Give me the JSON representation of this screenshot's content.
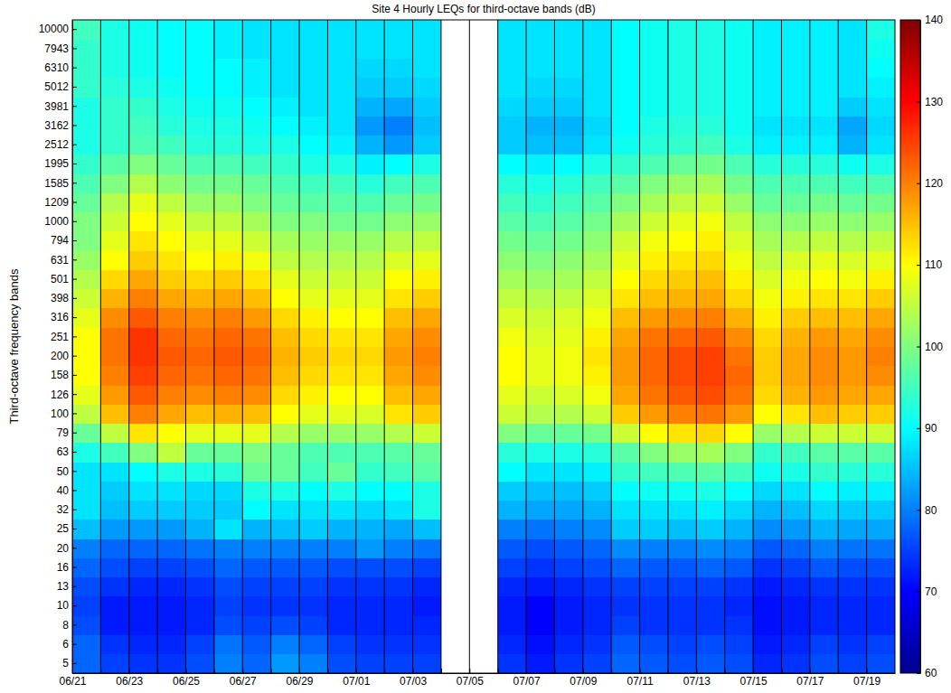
{
  "chart_data": {
    "type": "heatmap",
    "title": "Site 4 Hourly LEQs for third-octave bands (dB)",
    "y_label": "Third-octave frequency bands",
    "color": "jet",
    "grid": true,
    "categories": [
      "06/21",
      null,
      "06/23",
      null,
      "06/25",
      null,
      "06/27",
      null,
      "06/29",
      null,
      "07/01",
      null,
      "07/03",
      null,
      "07/05",
      null,
      "07/07",
      null,
      "07/09",
      null,
      "07/11",
      null,
      "07/13",
      null,
      "07/15",
      null,
      "07/17",
      null,
      "07/19"
    ],
    "bands": [
      5,
      6,
      8,
      10,
      13,
      16,
      20,
      25,
      32,
      40,
      50,
      63,
      79,
      100,
      126,
      158,
      200,
      251,
      316,
      398,
      501,
      631,
      794,
      1000,
      1209,
      1585,
      1995,
      2512,
      3162,
      3981,
      5012,
      6310,
      7943,
      10000
    ],
    "values": [
      [
        78,
        78,
        76,
        75,
        76,
        78,
        80,
        85,
        88,
        88,
        88,
        92,
        98,
        105,
        108,
        110,
        110,
        110,
        108,
        106,
        104,
        102,
        100,
        100,
        98,
        96,
        94,
        92,
        92,
        92,
        94,
        94,
        94,
        95
      ],
      [
        75,
        74,
        72,
        72,
        74,
        76,
        78,
        82,
        85,
        86,
        88,
        95,
        105,
        115,
        118,
        120,
        121,
        121,
        119,
        116,
        113,
        110,
        108,
        106,
        104,
        100,
        97,
        94,
        94,
        94,
        93,
        92,
        92,
        92
      ],
      [
        74,
        73,
        72,
        72,
        73,
        75,
        78,
        82,
        86,
        88,
        90,
        100,
        112,
        120,
        123,
        125,
        126,
        126,
        123,
        120,
        117,
        114,
        112,
        110,
        108,
        104,
        100,
        96,
        95,
        94,
        92,
        91,
        91,
        91
      ],
      [
        74,
        73,
        72,
        72,
        73,
        75,
        78,
        82,
        86,
        88,
        92,
        105,
        110,
        117,
        120,
        122,
        123,
        122,
        120,
        117,
        114,
        112,
        110,
        108,
        105,
        101,
        98,
        95,
        93,
        92,
        91,
        90,
        90,
        90
      ],
      [
        76,
        75,
        73,
        73,
        74,
        76,
        79,
        84,
        86,
        87,
        92,
        98,
        108,
        115,
        119,
        121,
        122,
        121,
        119,
        116,
        113,
        110,
        108,
        105,
        102,
        99,
        96,
        93,
        92,
        91,
        90,
        90,
        90,
        90
      ],
      [
        80,
        79,
        76,
        75,
        76,
        78,
        80,
        88,
        86,
        87,
        93,
        98,
        108,
        116,
        120,
        122,
        123,
        122,
        120,
        117,
        114,
        111,
        108,
        105,
        102,
        99,
        96,
        93,
        92,
        91,
        90,
        90,
        89,
        89
      ],
      [
        78,
        77,
        75,
        74,
        75,
        77,
        80,
        84,
        90,
        92,
        98,
        100,
        108,
        115,
        119,
        121,
        122,
        121,
        118,
        115,
        112,
        109,
        106,
        103,
        100,
        98,
        95,
        92,
        91,
        90,
        89,
        89,
        88,
        88
      ],
      [
        82,
        80,
        76,
        74,
        75,
        77,
        80,
        85,
        88,
        92,
        98,
        98,
        104,
        110,
        113,
        115,
        116,
        115,
        113,
        110,
        108,
        105,
        103,
        100,
        98,
        96,
        94,
        92,
        90,
        89,
        88,
        88,
        88,
        88
      ],
      [
        80,
        78,
        75,
        74,
        75,
        77,
        80,
        86,
        88,
        90,
        95,
        96,
        102,
        108,
        111,
        113,
        114,
        113,
        111,
        108,
        106,
        104,
        102,
        100,
        97,
        95,
        92,
        90,
        89,
        88,
        88,
        88,
        88,
        88
      ],
      [
        76,
        75,
        73,
        73,
        74,
        76,
        80,
        84,
        88,
        92,
        98,
        96,
        102,
        108,
        110,
        112,
        113,
        112,
        110,
        108,
        106,
        104,
        102,
        99,
        97,
        95,
        92,
        89,
        88,
        88,
        88,
        88,
        88,
        88
      ],
      [
        75,
        74,
        73,
        73,
        74,
        76,
        82,
        84,
        87,
        90,
        94,
        96,
        102,
        107,
        110,
        112,
        113,
        112,
        110,
        108,
        106,
        104,
        102,
        99,
        96,
        93,
        89,
        84,
        82,
        84,
        86,
        87,
        88,
        88
      ],
      [
        75,
        74,
        73,
        73,
        74,
        76,
        80,
        83,
        88,
        90,
        95,
        97,
        104,
        112,
        115,
        117,
        118,
        117,
        115,
        112,
        110,
        107,
        104,
        101,
        98,
        95,
        90,
        82,
        80,
        83,
        86,
        87,
        88,
        88
      ],
      [
        75,
        74,
        73,
        72,
        73,
        75,
        79,
        85,
        92,
        92,
        97,
        98,
        106,
        114,
        117,
        119,
        120,
        119,
        117,
        114,
        111,
        108,
        105,
        102,
        99,
        96,
        92,
        86,
        85,
        86,
        87,
        88,
        88,
        88
      ],
      [
        null,
        null,
        null,
        null,
        null,
        null,
        null,
        null,
        null,
        null,
        null,
        null,
        null,
        null,
        null,
        null,
        null,
        null,
        null,
        null,
        null,
        null,
        null,
        null,
        null,
        null,
        null,
        null,
        null,
        null,
        null,
        null,
        null,
        null
      ],
      [
        null,
        null,
        null,
        null,
        null,
        null,
        null,
        null,
        null,
        null,
        null,
        null,
        null,
        null,
        null,
        null,
        null,
        null,
        null,
        null,
        null,
        null,
        null,
        null,
        null,
        null,
        null,
        null,
        null,
        null,
        null,
        null,
        null,
        null
      ],
      [
        74,
        73,
        72,
        72,
        73,
        75,
        77,
        80,
        84,
        86,
        90,
        93,
        100,
        106,
        108,
        110,
        110,
        109,
        107,
        105,
        103,
        101,
        99,
        97,
        95,
        93,
        90,
        86,
        86,
        87,
        88,
        88,
        88,
        88
      ],
      [
        72,
        71,
        70,
        70,
        72,
        74,
        76,
        79,
        83,
        85,
        88,
        92,
        98,
        104,
        106,
        108,
        108,
        107,
        106,
        104,
        102,
        100,
        98,
        96,
        94,
        92,
        89,
        85,
        84,
        86,
        87,
        88,
        88,
        88
      ],
      [
        74,
        73,
        72,
        72,
        73,
        75,
        77,
        80,
        83,
        85,
        88,
        92,
        98,
        104,
        107,
        109,
        109,
        108,
        107,
        105,
        103,
        101,
        99,
        97,
        95,
        93,
        90,
        85,
        84,
        86,
        87,
        88,
        88,
        88
      ],
      [
        75,
        74,
        73,
        73,
        74,
        76,
        78,
        81,
        84,
        86,
        89,
        93,
        99,
        106,
        109,
        111,
        112,
        111,
        109,
        107,
        105,
        103,
        101,
        99,
        97,
        95,
        92,
        88,
        87,
        88,
        88,
        88,
        88,
        88
      ],
      [
        78,
        77,
        75,
        74,
        75,
        78,
        81,
        86,
        88,
        90,
        94,
        97,
        106,
        114,
        117,
        118,
        118,
        117,
        115,
        112,
        110,
        108,
        106,
        103,
        100,
        97,
        94,
        91,
        90,
        90,
        90,
        90,
        90,
        90
      ],
      [
        77,
        76,
        74,
        74,
        75,
        77,
        80,
        86,
        88,
        91,
        95,
        100,
        110,
        118,
        121,
        122,
        122,
        121,
        118,
        115,
        113,
        111,
        109,
        106,
        103,
        100,
        96,
        93,
        92,
        91,
        91,
        91,
        91,
        91
      ],
      [
        76,
        75,
        74,
        74,
        75,
        77,
        80,
        85,
        88,
        91,
        96,
        102,
        112,
        120,
        123,
        124,
        124,
        122,
        119,
        116,
        114,
        112,
        110,
        108,
        105,
        102,
        98,
        94,
        93,
        92,
        92,
        92,
        92,
        92
      ],
      [
        77,
        76,
        74,
        74,
        75,
        78,
        81,
        86,
        89,
        92,
        97,
        103,
        113,
        121,
        124,
        125,
        125,
        123,
        120,
        117,
        115,
        113,
        111,
        109,
        106,
        103,
        99,
        95,
        93,
        92,
        92,
        92,
        92,
        92
      ],
      [
        76,
        75,
        74,
        73,
        74,
        77,
        80,
        84,
        87,
        90,
        95,
        100,
        110,
        118,
        121,
        122,
        121,
        119,
        116,
        113,
        111,
        109,
        107,
        105,
        102,
        99,
        96,
        92,
        91,
        91,
        91,
        91,
        91,
        91
      ],
      [
        73,
        72,
        71,
        71,
        72,
        74,
        77,
        81,
        84,
        87,
        91,
        94,
        102,
        110,
        113,
        114,
        114,
        113,
        111,
        109,
        107,
        105,
        103,
        101,
        98,
        96,
        93,
        89,
        88,
        89,
        89,
        89,
        89,
        89
      ],
      [
        74,
        73,
        72,
        72,
        73,
        75,
        78,
        82,
        85,
        88,
        92,
        95,
        104,
        112,
        116,
        117,
        117,
        116,
        114,
        111,
        109,
        107,
        104,
        101,
        98,
        96,
        93,
        89,
        88,
        89,
        89,
        89,
        89,
        89
      ],
      [
        76,
        75,
        73,
        73,
        74,
        77,
        80,
        84,
        87,
        90,
        94,
        97,
        106,
        115,
        118,
        119,
        119,
        118,
        115,
        112,
        110,
        108,
        105,
        102,
        99,
        96,
        93,
        89,
        88,
        89,
        89,
        89,
        89,
        89
      ],
      [
        75,
        74,
        73,
        73,
        74,
        76,
        79,
        83,
        86,
        89,
        93,
        97,
        106,
        114,
        117,
        118,
        118,
        117,
        115,
        112,
        109,
        107,
        104,
        101,
        98,
        95,
        91,
        84,
        83,
        86,
        88,
        88,
        88,
        88
      ],
      [
        76,
        75,
        73,
        73,
        74,
        76,
        79,
        83,
        86,
        89,
        93,
        97,
        106,
        114,
        117,
        119,
        120,
        119,
        117,
        114,
        111,
        108,
        105,
        102,
        99,
        96,
        92,
        88,
        87,
        88,
        89,
        90,
        91,
        92
      ]
    ],
    "colorbar": {
      "range": [
        60,
        140
      ],
      "ticks": [
        60,
        70,
        80,
        90,
        100,
        110,
        120,
        130,
        140
      ]
    }
  }
}
